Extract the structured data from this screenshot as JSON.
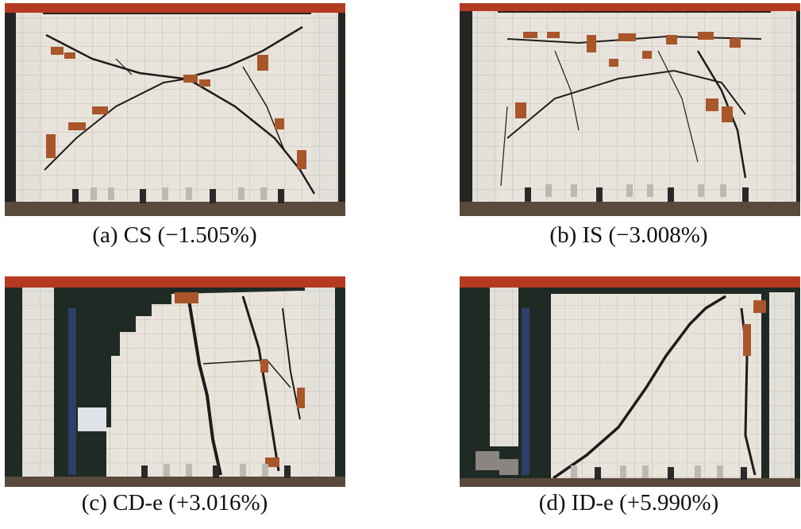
{
  "figure": {
    "panels": [
      {
        "id": "a",
        "caption": "(a) CS (−1.505%)"
      },
      {
        "id": "b",
        "caption": "(b) IS (−3.008%)"
      },
      {
        "id": "c",
        "caption": "(c) CD-e (+3.016%)"
      },
      {
        "id": "d",
        "caption": "(d) ID-e (+5.990%)"
      }
    ]
  },
  "colors": {
    "wall": "#e8e4dc",
    "grid": "#b9b3a8",
    "crack": "#1e1c1a",
    "spall": "#a8562a",
    "beam": "#b53a22",
    "background": "#1a1a1a"
  }
}
